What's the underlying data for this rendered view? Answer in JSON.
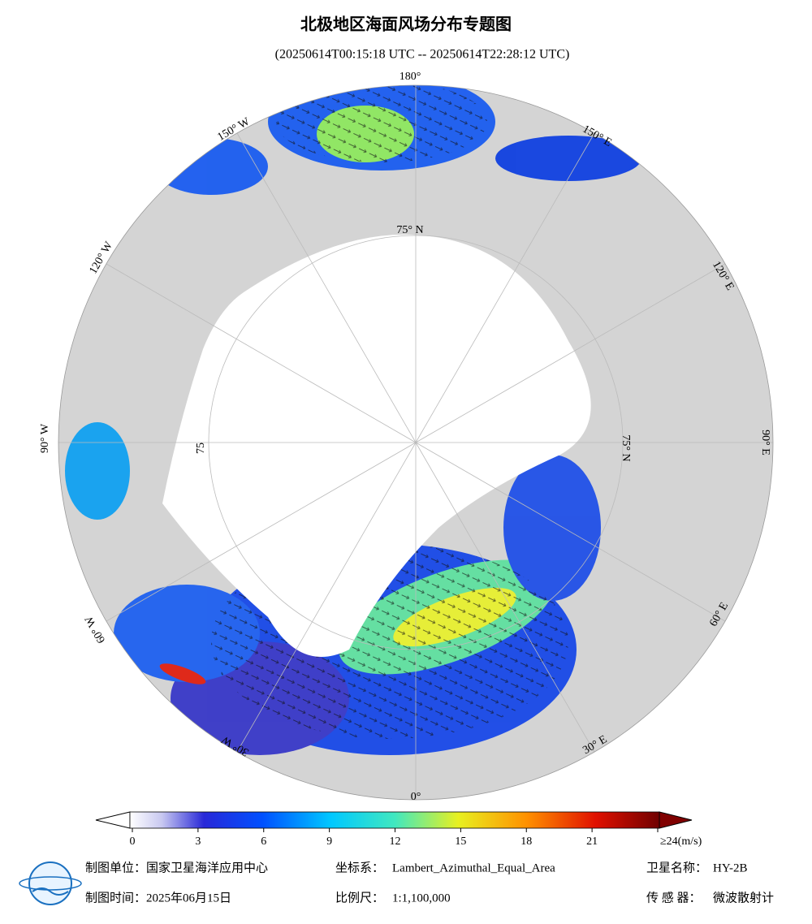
{
  "header": {
    "title": "北极地区海面风场分布专题图",
    "subtitle": "(20250614T00:15:18 UTC -- 20250614T22:28:12 UTC)"
  },
  "map": {
    "longitude_labels": [
      "180°",
      "150° E",
      "120° E",
      "90° E",
      "60° E",
      "30° E",
      "0°",
      "30° W",
      "60° W",
      "90° W",
      "120° W",
      "150° W"
    ],
    "latitude_labels": [
      "75° N",
      "75° N",
      "75"
    ]
  },
  "colorbar": {
    "lim": [
      0,
      24
    ],
    "ticks": [
      0,
      3,
      6,
      9,
      12,
      15,
      18,
      21,
      {
        "value": 24,
        "label": "≥24(m/s)"
      }
    ]
  },
  "footer": {
    "rows": [
      [
        {
          "label": "制图单位：",
          "value": "国家卫星海洋应用中心"
        },
        {
          "label": "坐标系：",
          "value": "Lambert_Azimuthal_Equal_Area"
        },
        {
          "label": "卫星名称：",
          "value": "HY-2B"
        }
      ],
      [
        {
          "label": "制图时间：",
          "value": "2025年06月15日"
        },
        {
          "label": "比例尺：",
          "value": "1:1,100,000"
        },
        {
          "label": "传 感 器：",
          "value": "微波散射计"
        }
      ]
    ]
  }
}
